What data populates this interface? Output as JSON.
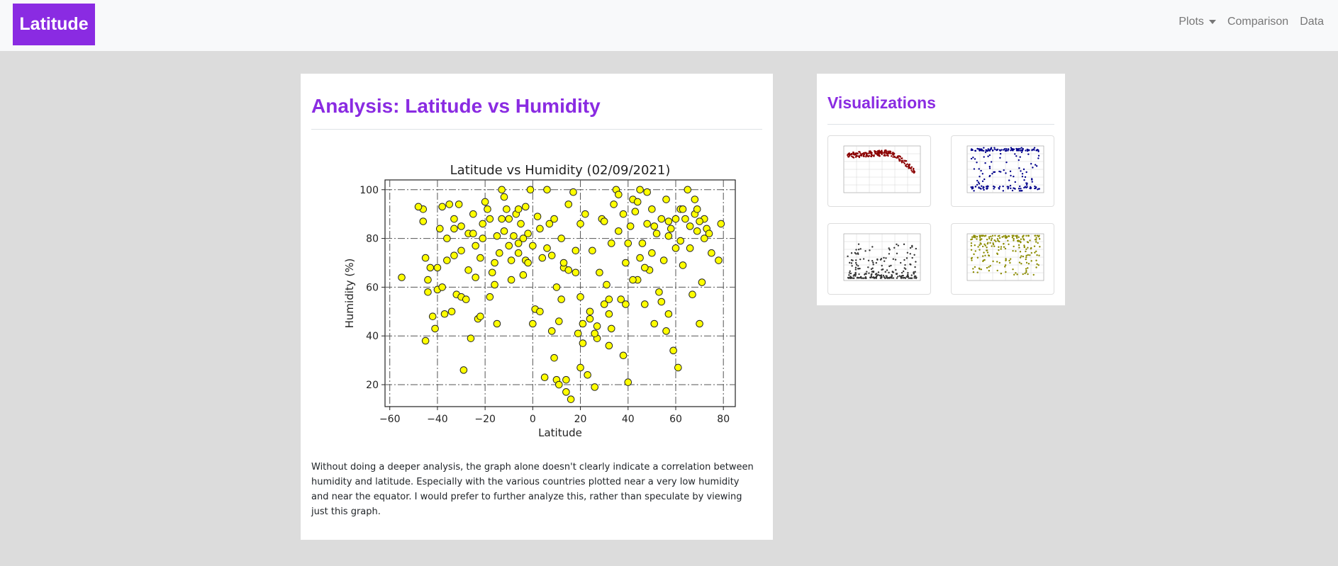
{
  "nav": {
    "brand": "Latitude",
    "links": [
      {
        "label": "Plots",
        "dropdown": true
      },
      {
        "label": "Comparison",
        "dropdown": false
      },
      {
        "label": "Data",
        "dropdown": false
      }
    ]
  },
  "main": {
    "title": "Analysis: Latitude vs Humidity",
    "description": "Without doing a deeper analysis, the graph alone doesn't clearly indicate a correlation between humidity and latitude. Especially with the various countries plotted near a very low humidity and near the equator. I would prefer to further analyze this, rather than speculate by viewing just this graph."
  },
  "sidebar": {
    "title": "Visualizations",
    "thumbnails": [
      {
        "name": "max-temperature-thumbnail",
        "color": "#8b0000"
      },
      {
        "name": "cloudiness-thumbnail",
        "color": "#00008b"
      },
      {
        "name": "wind-speed-thumbnail",
        "color": "#333333"
      },
      {
        "name": "humidity-thumbnail",
        "color": "#8b8b00"
      }
    ]
  },
  "chart_data": {
    "type": "scatter",
    "title": "Latitude vs Humidity (02/09/2021)",
    "xlabel": "Latitude",
    "ylabel": "Humidity (%)",
    "xlim": [
      -62,
      85
    ],
    "ylim": [
      11,
      104
    ],
    "xticks": [
      -60,
      -40,
      -20,
      0,
      20,
      40,
      60,
      80
    ],
    "yticks": [
      20,
      40,
      60,
      80,
      100
    ],
    "grid": true,
    "marker_color": "#ffff00",
    "marker_edge": "#222222",
    "points": [
      [
        -55,
        64
      ],
      [
        -46,
        92
      ],
      [
        -46,
        87
      ],
      [
        -45,
        72
      ],
      [
        -45,
        38
      ],
      [
        -44,
        63
      ],
      [
        -43,
        68
      ],
      [
        -42,
        48
      ],
      [
        -41,
        43
      ],
      [
        -40,
        68
      ],
      [
        -40,
        59
      ],
      [
        -38,
        93
      ],
      [
        -38,
        60
      ],
      [
        -37,
        49
      ],
      [
        -36,
        80
      ],
      [
        -35,
        94
      ],
      [
        -34,
        50
      ],
      [
        -33,
        88
      ],
      [
        -33,
        84
      ],
      [
        -33,
        73
      ],
      [
        -32,
        57
      ],
      [
        -31,
        94
      ],
      [
        -30,
        56
      ],
      [
        -30,
        85
      ],
      [
        -29,
        26
      ],
      [
        -28,
        55
      ],
      [
        -27,
        82
      ],
      [
        -26,
        39
      ],
      [
        -25,
        90
      ],
      [
        -24,
        77
      ],
      [
        -23,
        47
      ],
      [
        -22,
        48
      ],
      [
        -22,
        72
      ],
      [
        -21,
        80
      ],
      [
        -20,
        95
      ],
      [
        -19,
        92
      ],
      [
        -18,
        88
      ],
      [
        -17,
        66
      ],
      [
        -16,
        70
      ],
      [
        -15,
        45
      ],
      [
        -14,
        74
      ],
      [
        -13,
        100
      ],
      [
        -13,
        88
      ],
      [
        -12,
        83
      ],
      [
        -11,
        92
      ],
      [
        -10,
        77
      ],
      [
        -9,
        63
      ],
      [
        -8,
        81
      ],
      [
        -7,
        90
      ],
      [
        -6,
        74
      ],
      [
        -5,
        86
      ],
      [
        -4,
        65
      ],
      [
        -3,
        93
      ],
      [
        -2,
        82
      ],
      [
        -1,
        100
      ],
      [
        0,
        77
      ],
      [
        1,
        51
      ],
      [
        2,
        89
      ],
      [
        3,
        50
      ],
      [
        4,
        72
      ],
      [
        5,
        23
      ],
      [
        6,
        100
      ],
      [
        7,
        86
      ],
      [
        8,
        73
      ],
      [
        9,
        31
      ],
      [
        10,
        22
      ],
      [
        10,
        60
      ],
      [
        11,
        46
      ],
      [
        12,
        80
      ],
      [
        13,
        68
      ],
      [
        14,
        17
      ],
      [
        14,
        22
      ],
      [
        15,
        67
      ],
      [
        16,
        14
      ],
      [
        17,
        99
      ],
      [
        18,
        75
      ],
      [
        19,
        41
      ],
      [
        20,
        56
      ],
      [
        20,
        27
      ],
      [
        21,
        37
      ],
      [
        22,
        90
      ],
      [
        23,
        24
      ],
      [
        24,
        50
      ],
      [
        25,
        75
      ],
      [
        26,
        19
      ],
      [
        27,
        44
      ],
      [
        28,
        66
      ],
      [
        29,
        88
      ],
      [
        30,
        53
      ],
      [
        31,
        61
      ],
      [
        32,
        36
      ],
      [
        33,
        43
      ],
      [
        34,
        94
      ],
      [
        35,
        100
      ],
      [
        36,
        83
      ],
      [
        37,
        55
      ],
      [
        38,
        32
      ],
      [
        39,
        70
      ],
      [
        40,
        21
      ],
      [
        40,
        78
      ],
      [
        41,
        85
      ],
      [
        42,
        96
      ],
      [
        43,
        91
      ],
      [
        44,
        63
      ],
      [
        45,
        100
      ],
      [
        46,
        78
      ],
      [
        47,
        53
      ],
      [
        48,
        86
      ],
      [
        49,
        67
      ],
      [
        50,
        92
      ],
      [
        51,
        45
      ],
      [
        52,
        82
      ],
      [
        53,
        58
      ],
      [
        54,
        88
      ],
      [
        55,
        71
      ],
      [
        56,
        96
      ],
      [
        57,
        49
      ],
      [
        58,
        84
      ],
      [
        59,
        34
      ],
      [
        60,
        76
      ],
      [
        61,
        27
      ],
      [
        62,
        92
      ],
      [
        63,
        69
      ],
      [
        64,
        88
      ],
      [
        65,
        100
      ],
      [
        66,
        85
      ],
      [
        67,
        57
      ],
      [
        68,
        90
      ],
      [
        69,
        83
      ],
      [
        70,
        45
      ],
      [
        71,
        62
      ],
      [
        72,
        88
      ],
      [
        73,
        84
      ],
      [
        75,
        74
      ],
      [
        78,
        71
      ],
      [
        79,
        86
      ],
      [
        -48,
        93
      ],
      [
        -36,
        71
      ],
      [
        -24,
        64
      ],
      [
        -12,
        97
      ],
      [
        0,
        45
      ],
      [
        12,
        55
      ],
      [
        24,
        47
      ],
      [
        36,
        98
      ],
      [
        48,
        99
      ],
      [
        60,
        88
      ],
      [
        72,
        80
      ],
      [
        -39,
        84
      ],
      [
        -27,
        67
      ],
      [
        -15,
        81
      ],
      [
        -3,
        71
      ],
      [
        9,
        88
      ],
      [
        21,
        45
      ],
      [
        33,
        78
      ],
      [
        45,
        72
      ],
      [
        57,
        81
      ],
      [
        69,
        92
      ],
      [
        -30,
        75
      ],
      [
        -18,
        56
      ],
      [
        -6,
        92
      ],
      [
        6,
        76
      ],
      [
        18,
        66
      ],
      [
        30,
        87
      ],
      [
        42,
        63
      ],
      [
        54,
        54
      ],
      [
        66,
        76
      ],
      [
        -21,
        86
      ],
      [
        -9,
        71
      ],
      [
        3,
        84
      ],
      [
        15,
        94
      ],
      [
        27,
        39
      ],
      [
        39,
        53
      ],
      [
        51,
        85
      ],
      [
        63,
        92
      ],
      [
        -16,
        61
      ],
      [
        -4,
        80
      ],
      [
        8,
        42
      ],
      [
        20,
        86
      ],
      [
        32,
        49
      ],
      [
        44,
        95
      ],
      [
        56,
        42
      ],
      [
        68,
        96
      ],
      [
        -44,
        58
      ],
      [
        -25,
        82
      ],
      [
        -6,
        78
      ],
      [
        13,
        70
      ],
      [
        32,
        55
      ],
      [
        50,
        74
      ],
      [
        70,
        87
      ],
      [
        -10,
        88
      ],
      [
        26,
        41
      ],
      [
        47,
        68
      ],
      [
        62,
        79
      ],
      [
        -2,
        70
      ],
      [
        11,
        20
      ],
      [
        38,
        90
      ],
      [
        57,
        87
      ],
      [
        74,
        82
      ]
    ]
  }
}
